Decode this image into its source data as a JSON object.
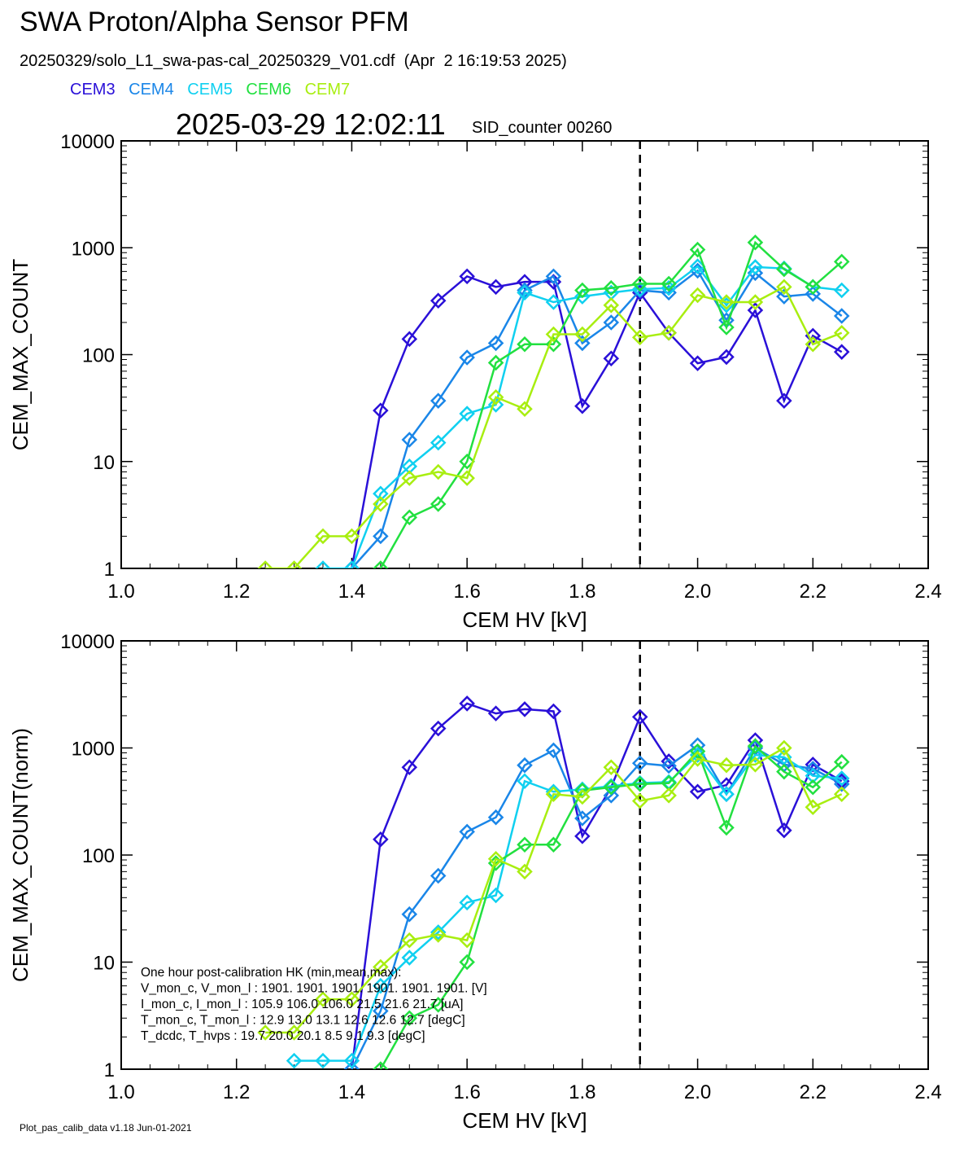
{
  "header": {
    "title": "SWA Proton/Alpha Sensor PFM",
    "file_line": "20250329/solo_L1_swa-pas-cal_20250329_V01.cdf  (Apr  2 16:19:53 2025)",
    "timestamp": "2025-03-29 12:02:11",
    "sid_counter": "SID_counter 00260"
  },
  "legend": [
    {
      "name": "CEM3",
      "color": "#2a10d8"
    },
    {
      "name": "CEM4",
      "color": "#1a86e8"
    },
    {
      "name": "CEM5",
      "color": "#10d0f0"
    },
    {
      "name": "CEM6",
      "color": "#22e040"
    },
    {
      "name": "CEM7",
      "color": "#a8ee10"
    }
  ],
  "hk_box": {
    "lines": [
      "One hour post-calibration HK (min,mean,max):",
      "V_mon_c, V_mon_l :   1901.   1901.  1901.       1901.   1901.   1901.  [V]",
      "I_mon_c,  I_mon_l :   105.9   106.0  106.0        21.5    21.6    21.7  [uA]",
      "T_mon_c, T_mon_l :    12.9    13.0    13.1         12.6    12.6    12.7  [degC]",
      "T_dcdc,    T_hvps :    19.7    20.0    20.1          8.5     9.1     9.3  [degC]"
    ]
  },
  "footer": "Plot_pas_calib_data v1.18 Jun-01-2021",
  "chart_data": [
    {
      "type": "line",
      "xlabel": "CEM HV [kV]",
      "ylabel": "CEM_MAX_COUNT",
      "xlim": [
        1.0,
        2.4
      ],
      "ylim": [
        1,
        10000
      ],
      "yscale": "log",
      "xticks": [
        "1.0",
        "1.2",
        "1.4",
        "1.6",
        "1.8",
        "2.0",
        "2.2",
        "2.4"
      ],
      "yticks": [
        "1",
        "10",
        "100",
        "1000",
        "10000"
      ],
      "vline_x": 1.9,
      "series": [
        {
          "name": "CEM3",
          "color": "#2a10d8",
          "x": [
            1.4,
            1.45,
            1.5,
            1.55,
            1.6,
            1.65,
            1.7,
            1.75,
            1.8,
            1.85,
            1.9,
            1.95,
            2.0,
            2.05,
            2.1,
            2.15,
            2.2,
            2.25
          ],
          "y": [
            1,
            30,
            140,
            320,
            540,
            430,
            480,
            480,
            33,
            92,
            380,
            160,
            83,
            95,
            260,
            37,
            150,
            106
          ]
        },
        {
          "name": "CEM4",
          "color": "#1a86e8",
          "x": [
            1.4,
            1.45,
            1.5,
            1.55,
            1.6,
            1.65,
            1.7,
            1.75,
            1.8,
            1.85,
            1.9,
            1.95,
            2.0,
            2.05,
            2.1,
            2.15,
            2.2,
            2.25
          ],
          "y": [
            1,
            2,
            16,
            37,
            94,
            128,
            400,
            540,
            128,
            200,
            400,
            380,
            610,
            210,
            580,
            350,
            370,
            230
          ]
        },
        {
          "name": "CEM5",
          "color": "#10d0f0",
          "x": [
            1.35,
            1.4,
            1.45,
            1.5,
            1.55,
            1.6,
            1.65,
            1.7,
            1.75,
            1.8,
            1.85,
            1.9,
            1.95,
            2.0,
            2.05,
            2.1,
            2.15,
            2.2,
            2.25
          ],
          "y": [
            1,
            1,
            5,
            9,
            15,
            28,
            34,
            380,
            310,
            350,
            380,
            410,
            420,
            670,
            290,
            660,
            640,
            430,
            400
          ]
        },
        {
          "name": "CEM6",
          "color": "#22e040",
          "x": [
            1.45,
            1.5,
            1.55,
            1.6,
            1.65,
            1.7,
            1.75,
            1.8,
            1.85,
            1.9,
            1.95,
            2.0,
            2.05,
            2.1,
            2.15,
            2.2,
            2.25
          ],
          "y": [
            1,
            3,
            4,
            10,
            84,
            125,
            125,
            400,
            420,
            460,
            460,
            960,
            180,
            1120,
            630,
            430,
            740
          ]
        },
        {
          "name": "CEM7",
          "color": "#a8ee10",
          "x": [
            1.25,
            1.3,
            1.35,
            1.4,
            1.45,
            1.5,
            1.55,
            1.6,
            1.65,
            1.7,
            1.75,
            1.8,
            1.85,
            1.9,
            1.95,
            2.0,
            2.05,
            2.1,
            2.15,
            2.2,
            2.25
          ],
          "y": [
            1,
            1,
            2,
            2,
            4,
            7,
            8,
            7,
            40,
            31,
            155,
            155,
            290,
            145,
            160,
            360,
            310,
            310,
            430,
            125,
            160
          ]
        }
      ]
    },
    {
      "type": "line",
      "xlabel": "CEM HV [kV]",
      "ylabel": "CEM_MAX_COUNT(norm)",
      "xlim": [
        1.0,
        2.4
      ],
      "ylim": [
        1,
        10000
      ],
      "yscale": "log",
      "xticks": [
        "1.0",
        "1.2",
        "1.4",
        "1.6",
        "1.8",
        "2.0",
        "2.2",
        "2.4"
      ],
      "yticks": [
        "1",
        "10",
        "100",
        "1000",
        "10000"
      ],
      "vline_x": 1.9,
      "series": [
        {
          "name": "CEM3",
          "color": "#2a10d8",
          "x": [
            1.4,
            1.45,
            1.5,
            1.55,
            1.6,
            1.65,
            1.7,
            1.75,
            1.8,
            1.85,
            1.9,
            1.95,
            2.0,
            2.05,
            2.1,
            2.15,
            2.2,
            2.25
          ],
          "y": [
            1,
            140,
            660,
            1520,
            2600,
            2100,
            2300,
            2200,
            150,
            430,
            1950,
            750,
            390,
            450,
            1180,
            170,
            700,
            490
          ]
        },
        {
          "name": "CEM4",
          "color": "#1a86e8",
          "x": [
            1.4,
            1.45,
            1.5,
            1.55,
            1.6,
            1.65,
            1.7,
            1.75,
            1.8,
            1.85,
            1.9,
            1.95,
            2.0,
            2.05,
            2.1,
            2.15,
            2.2,
            2.25
          ],
          "y": [
            1,
            3.5,
            28,
            64,
            165,
            225,
            690,
            950,
            220,
            360,
            720,
            680,
            1060,
            370,
            1000,
            700,
            640,
            460
          ]
        },
        {
          "name": "CEM5",
          "color": "#10d0f0",
          "x": [
            1.3,
            1.35,
            1.4,
            1.45,
            1.5,
            1.55,
            1.6,
            1.65,
            1.7,
            1.75,
            1.8,
            1.85,
            1.9,
            1.95,
            2.0,
            2.05,
            2.1,
            2.15,
            2.2,
            2.25
          ],
          "y": [
            1.2,
            1.2,
            1.2,
            6,
            11,
            19,
            36,
            42,
            490,
            390,
            410,
            440,
            470,
            480,
            860,
            370,
            860,
            820,
            550,
            520
          ]
        },
        {
          "name": "CEM6",
          "color": "#22e040",
          "x": [
            1.45,
            1.5,
            1.55,
            1.6,
            1.65,
            1.7,
            1.75,
            1.8,
            1.85,
            1.9,
            1.95,
            2.0,
            2.05,
            2.1,
            2.15,
            2.2,
            2.25
          ],
          "y": [
            1,
            3,
            4,
            10,
            84,
            125,
            125,
            400,
            430,
            460,
            470,
            930,
            180,
            1040,
            600,
            430,
            740
          ]
        },
        {
          "name": "CEM7",
          "color": "#a8ee10",
          "x": [
            1.25,
            1.3,
            1.35,
            1.4,
            1.45,
            1.5,
            1.55,
            1.6,
            1.65,
            1.7,
            1.75,
            1.8,
            1.85,
            1.9,
            1.95,
            2.0,
            2.05,
            2.1,
            2.15,
            2.2,
            2.25
          ],
          "y": [
            2.2,
            2.2,
            4.5,
            4.5,
            9,
            16,
            18,
            16,
            92,
            70,
            370,
            350,
            660,
            320,
            360,
            790,
            690,
            700,
            1000,
            280,
            370
          ]
        }
      ]
    }
  ]
}
